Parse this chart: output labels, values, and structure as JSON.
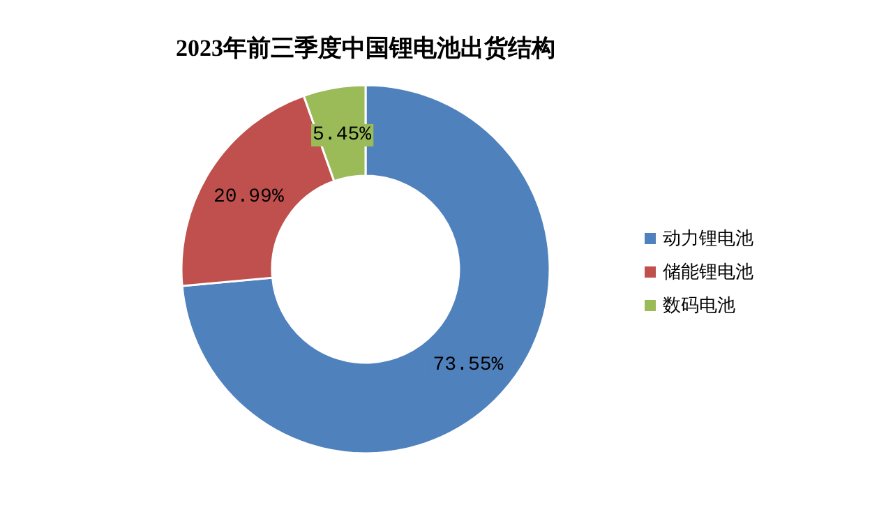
{
  "chart_data": {
    "type": "donut",
    "title": "2023年前三季度中国锂电池出货结构",
    "categories": [
      "动力锂电池",
      "储能锂电池",
      "数码电池"
    ],
    "values": [
      73.55,
      20.99,
      5.45
    ],
    "colors": [
      "#4f81bd",
      "#c0504d",
      "#9bbb59"
    ],
    "value_labels": [
      "73.55%",
      "20.99%",
      "5.45%"
    ],
    "legend": "right"
  }
}
